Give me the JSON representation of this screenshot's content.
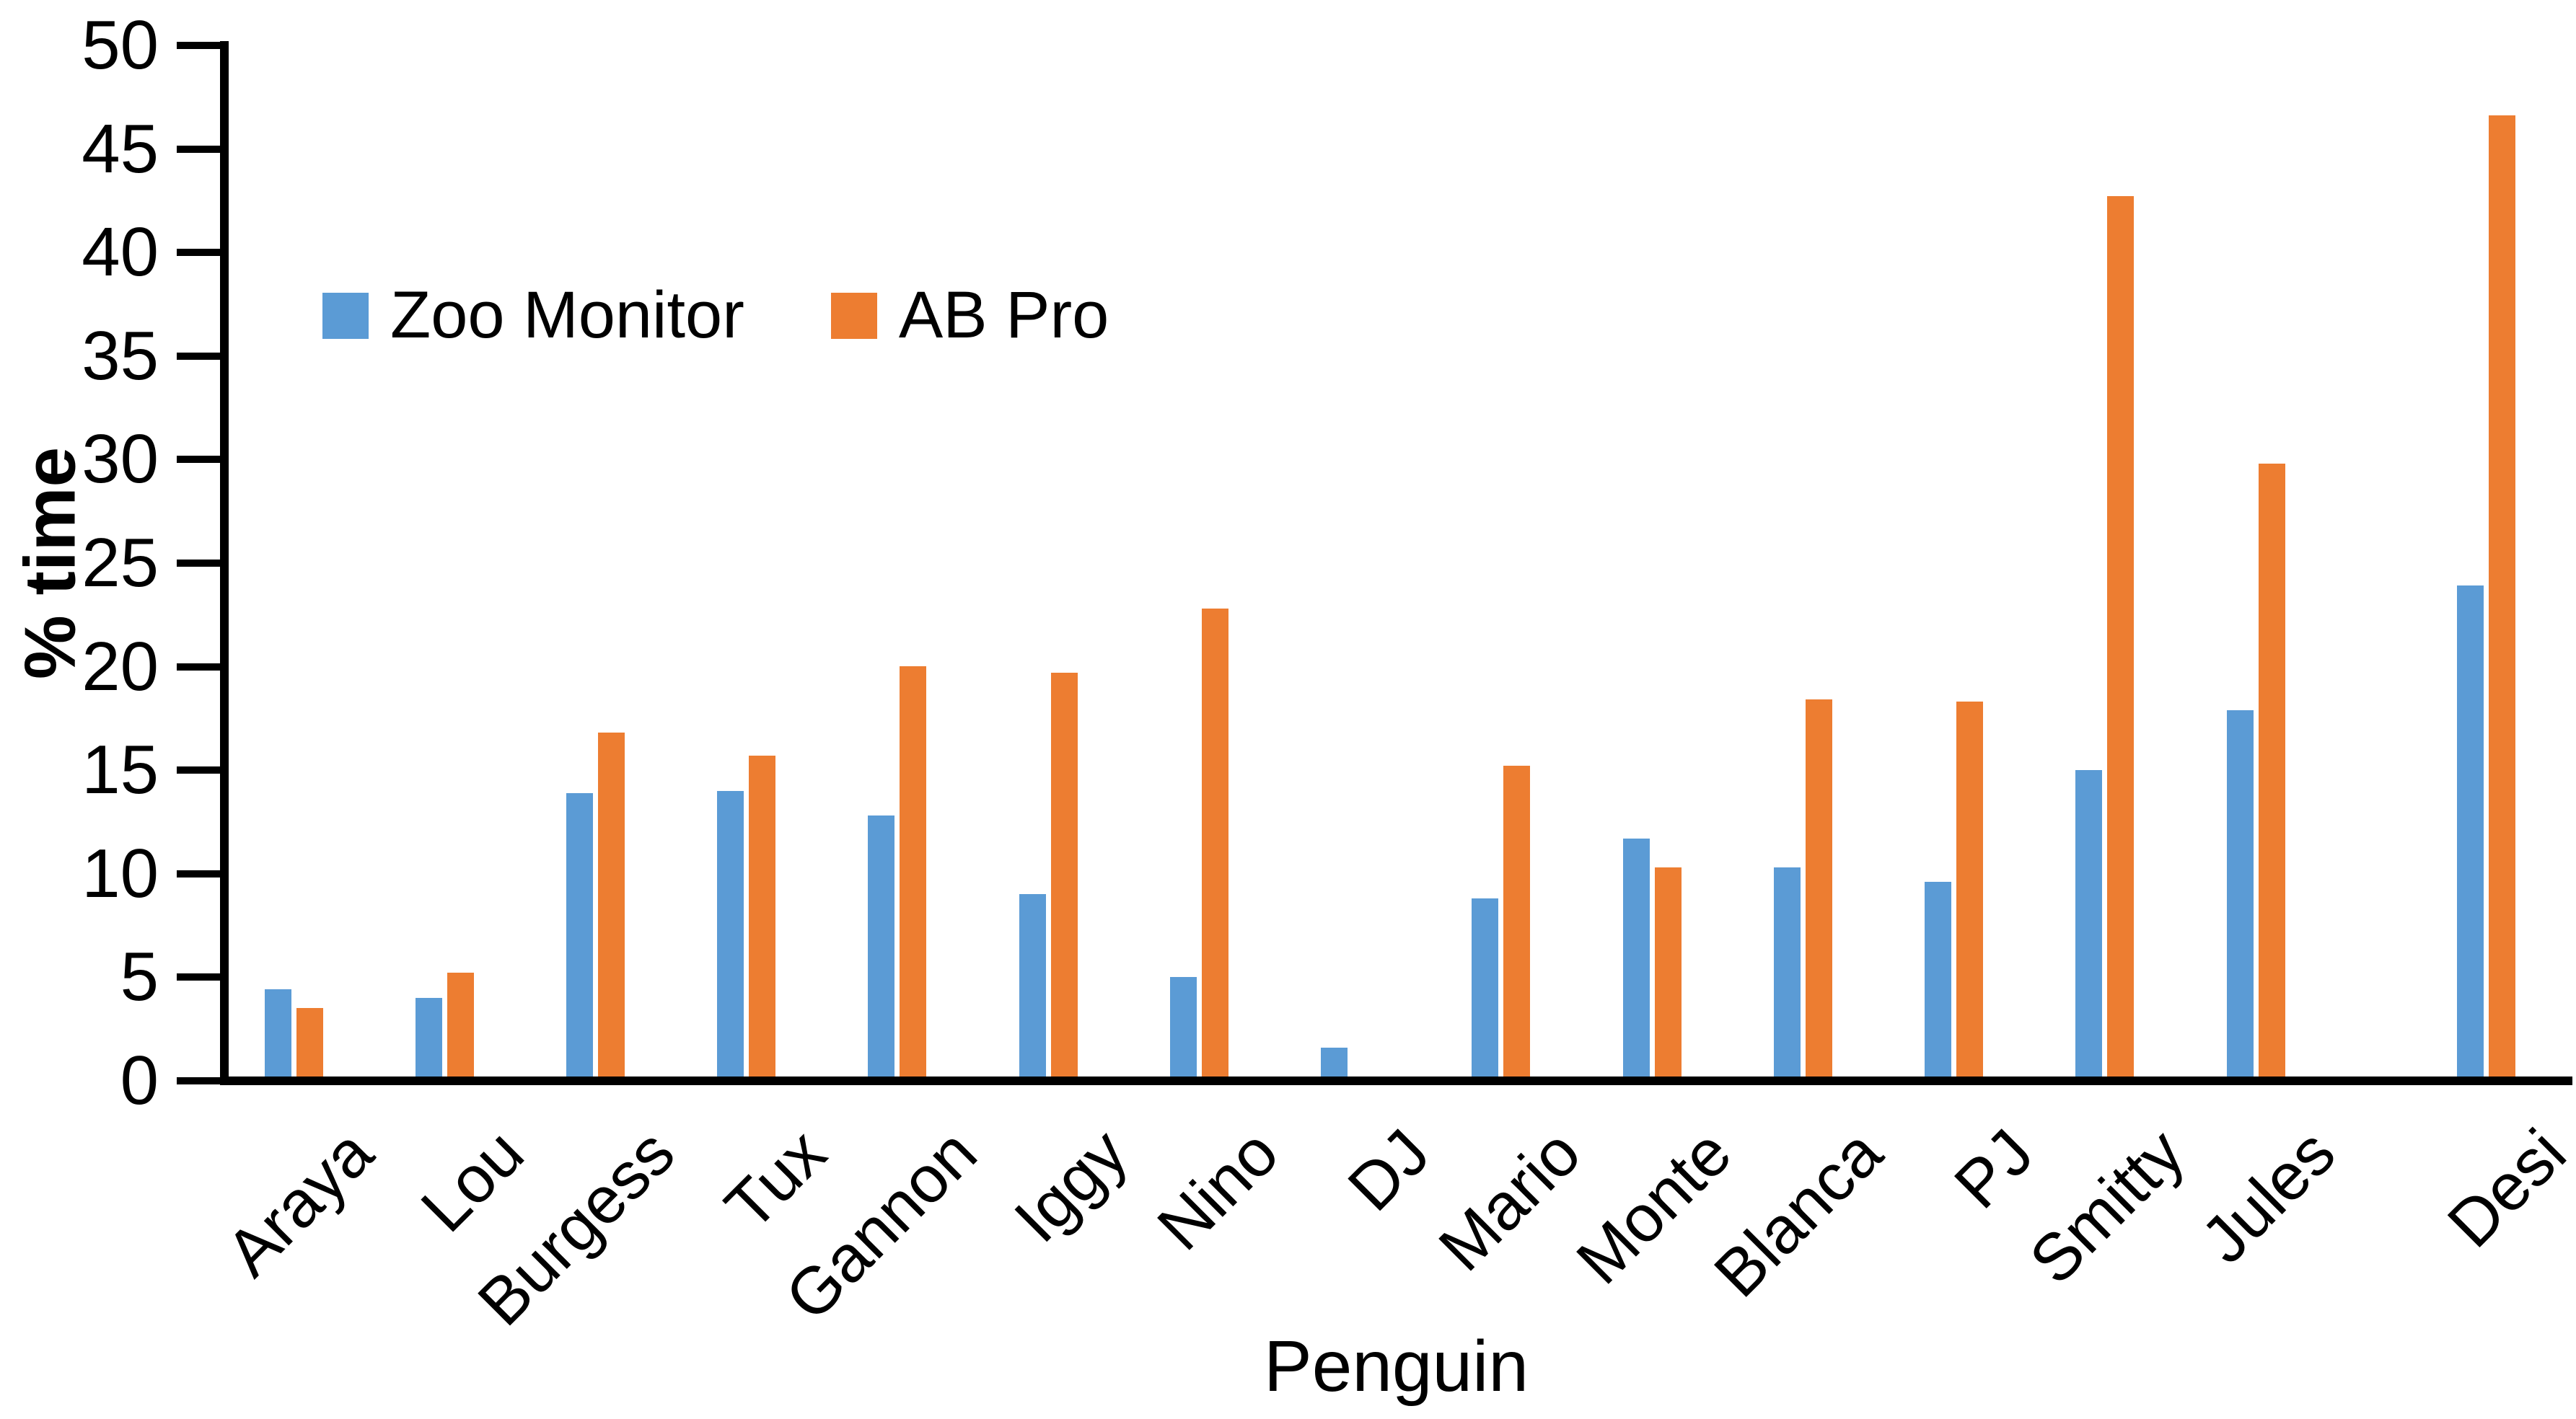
{
  "chart_data": {
    "type": "bar",
    "title": "",
    "xlabel": "Penguin",
    "ylabel": "% time",
    "ylim": [
      0,
      50
    ],
    "yticks": [
      0,
      5,
      10,
      15,
      20,
      25,
      30,
      35,
      40,
      45,
      50
    ],
    "grid": false,
    "legend_position": "inside-top-left",
    "bar_orientation": "vertical",
    "categories": [
      "Araya",
      "Lou",
      "Burgess",
      "Tux",
      "Gannon",
      "Iggy",
      "Nino",
      "DJ",
      "Mario",
      "Monte",
      "Blanca",
      "PJ",
      "Smitty",
      "Jules",
      "Desi"
    ],
    "series": [
      {
        "name": "Zoo Monitor",
        "color": "#5B9BD5",
        "values": [
          4.2,
          3.8,
          13.7,
          13.8,
          12.6,
          8.8,
          4.8,
          1.4,
          8.6,
          11.5,
          10.1,
          9.4,
          14.8,
          17.7,
          23.7
        ]
      },
      {
        "name": "AB Pro",
        "color": "#ED7D31",
        "values": [
          3.3,
          5.0,
          16.6,
          15.5,
          19.8,
          19.5,
          22.6,
          0,
          15.0,
          10.1,
          18.2,
          18.1,
          42.5,
          29.6,
          46.4
        ]
      }
    ],
    "extra_gap_before_last_category": true,
    "axis_color": "#000000",
    "text_color": "#000000"
  }
}
